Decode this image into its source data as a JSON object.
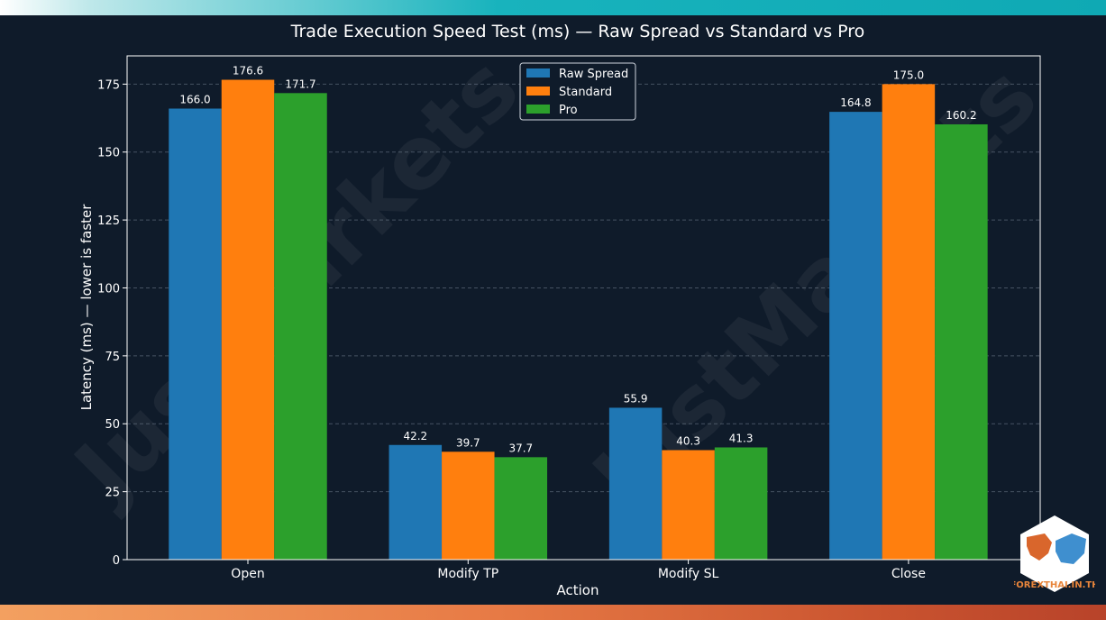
{
  "chart_data": {
    "type": "bar",
    "title": "Trade Execution Speed Test (ms) — Raw Spread vs Standard vs Pro",
    "xlabel": "Action",
    "ylabel": "Latency (ms) — lower is faster",
    "categories": [
      "Open",
      "Modify TP",
      "Modify SL",
      "Close"
    ],
    "series": [
      {
        "name": "Raw Spread",
        "values": [
          166.0,
          42.2,
          55.9,
          164.8
        ],
        "color": "#1f77b4"
      },
      {
        "name": "Standard",
        "values": [
          176.6,
          39.7,
          40.3,
          175.0
        ],
        "color": "#ff7f0e"
      },
      {
        "name": "Pro",
        "values": [
          171.7,
          37.7,
          41.3,
          160.2
        ],
        "color": "#2ca02c"
      }
    ],
    "yticks": [
      0,
      25,
      50,
      75,
      100,
      125,
      150,
      175
    ],
    "ylim": [
      0,
      185.4
    ],
    "grid": "horizontal dashed",
    "legend": "top-center"
  },
  "watermark": "JustMarkets",
  "brand": {
    "name": "FOREXTHAI.IN.TH"
  }
}
